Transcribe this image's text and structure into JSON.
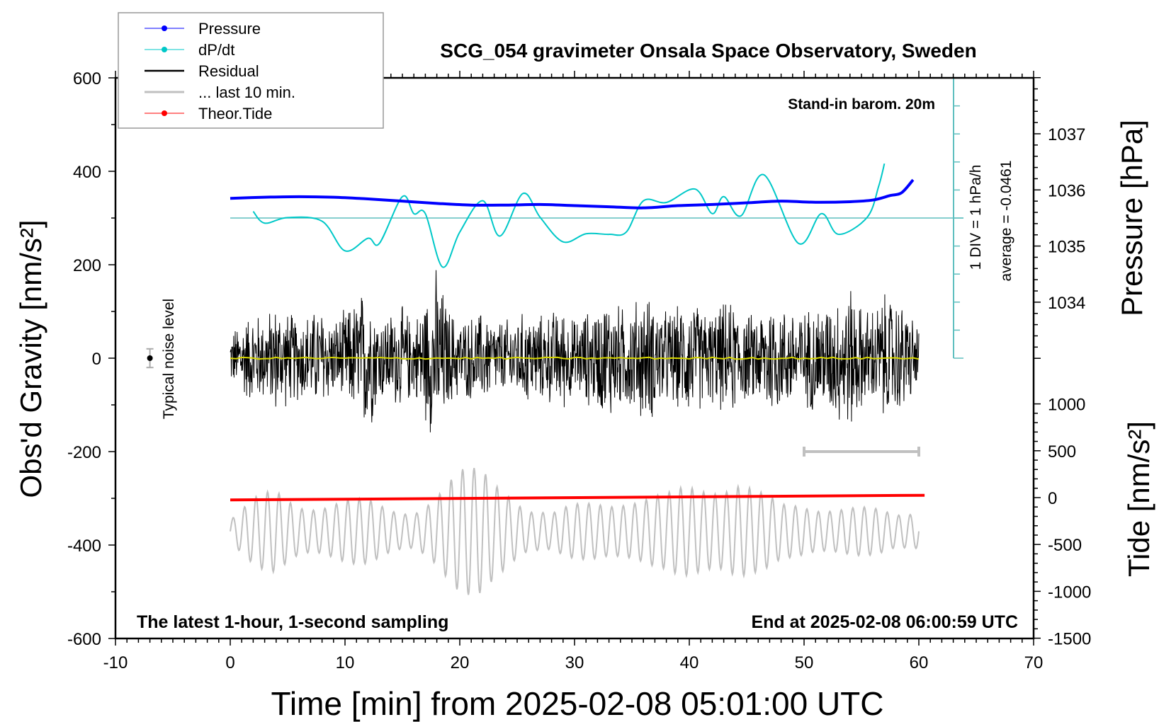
{
  "chart_data": {
    "type": "line",
    "title": "SCG_054 gravimeter Onsala Space Observatory, Sweden",
    "xlabel": "Time [min] from 2025-02-08 05:01:00 UTC",
    "ylabel_left": "Obs'd Gravity [nm/s²]",
    "ylabel_right_top": "Pressure [hPa]",
    "ylabel_right_bottom": "Tide [nm/s²]",
    "xlim": [
      -10,
      70
    ],
    "ylim_left": [
      -600,
      600
    ],
    "ylim_pressure": [
      1033,
      1038
    ],
    "ylim_tide": [
      -1500,
      1500
    ],
    "xticks": [
      "-10",
      "0",
      "10",
      "20",
      "30",
      "40",
      "50",
      "60",
      "70"
    ],
    "yticks_left": [
      "600",
      "400",
      "200",
      "0",
      "-200",
      "-400",
      "-600"
    ],
    "yticks_pressure": [
      "1037",
      "1036",
      "1035",
      "1034"
    ],
    "yticks_tide": [
      "1000",
      "500",
      "0",
      "-500",
      "-1000",
      "-1500"
    ],
    "annotations": {
      "barometer": "Stand-in barom. 20m",
      "noise": "Typical noise level",
      "div": "1 DIV = 1 hPa/h",
      "average": "average = -0.0461",
      "latest": "The latest 1-hour, 1-second sampling",
      "end": "End at 2025-02-08 06:00:59 UTC"
    },
    "legend": {
      "placement": "top-left",
      "entries": [
        "Pressure",
        "dP/dt",
        "Residual",
        "... last 10 min.",
        "Theor.Tide"
      ]
    },
    "colors": {
      "pressure": "#0000ff",
      "dpdt": "#00c8c8",
      "dpdt_axis": "#5fbfbf",
      "residual": "#000000",
      "residual_mean": "#d8d800",
      "last10": "#c0c0c0",
      "tide": "#ff0000"
    },
    "dpdt_average": -0.0461,
    "series": [
      {
        "name": "Pressure",
        "axis": "pressure",
        "x": [
          0,
          3,
          6,
          9,
          12,
          15,
          18,
          21,
          24,
          27,
          30,
          33,
          36,
          39,
          42,
          45,
          48,
          51,
          54,
          56,
          57.5,
          58.5,
          59.5
        ],
        "y": [
          1035.85,
          1035.87,
          1035.88,
          1035.87,
          1035.84,
          1035.8,
          1035.76,
          1035.73,
          1035.73,
          1035.74,
          1035.72,
          1035.7,
          1035.68,
          1035.72,
          1035.74,
          1035.77,
          1035.8,
          1035.78,
          1035.79,
          1035.82,
          1035.9,
          1035.95,
          1036.18
        ]
      },
      {
        "name": "dP/dt",
        "axis": "dpdt",
        "x": [
          2,
          3,
          5,
          8,
          10,
          12,
          13,
          15,
          16,
          17,
          18.5,
          20,
          22,
          23.5,
          25.5,
          27,
          29,
          31,
          33,
          34.5,
          36,
          38,
          40.5,
          42,
          43,
          44.5,
          46.5,
          49.5,
          51.5,
          53,
          55.5,
          56.5,
          57
        ],
        "y": [
          0.19,
          -0.23,
          -0.03,
          -0.16,
          -1.22,
          -0.77,
          -0.95,
          0.72,
          0.11,
          0.11,
          -1.8,
          -0.55,
          0.57,
          -0.69,
          0.83,
          -0.02,
          -0.9,
          -0.61,
          -0.63,
          -0.55,
          0.57,
          0.51,
          0.99,
          0.11,
          0.72,
          0.03,
          1.5,
          -0.95,
          0.11,
          -0.63,
          -0.02,
          1.09,
          1.9
        ]
      },
      {
        "name": "Residual",
        "axis": "gravity",
        "x_step_min": 1,
        "x_start": 0,
        "envelope": [
          60,
          90,
          110,
          100,
          130,
          110,
          100,
          110,
          120,
          90,
          110,
          140,
          180,
          100,
          110,
          120,
          90,
          150,
          210,
          120,
          90,
          100,
          110,
          90,
          90,
          100,
          110,
          100,
          110,
          120,
          90,
          110,
          120,
          150,
          120,
          130,
          150,
          140,
          110,
          120,
          140,
          120,
          110,
          130,
          130,
          100,
          110,
          150,
          120,
          120,
          110,
          130,
          130,
          150,
          175,
          120,
          120,
          150,
          140,
          120,
          70
        ]
      },
      {
        "name": "... last 10 min.",
        "axis": "tide",
        "x_step_min": 2,
        "x_start": 0,
        "center": -360,
        "period_min": 1.0,
        "envelope": [
          150,
          350,
          500,
          400,
          350,
          350,
          350,
          300,
          300,
          450,
          650,
          750,
          650,
          300,
          200,
          300,
          400,
          450,
          400,
          400,
          550,
          650,
          700,
          450,
          300,
          350,
          350,
          300,
          250,
          200,
          300
        ]
      },
      {
        "name": "Theor.Tide",
        "axis": "tide",
        "x": [
          0,
          60.5
        ],
        "y": [
          -25,
          25
        ]
      }
    ],
    "noise_level": {
      "x": -7,
      "value": 0,
      "error": 20
    },
    "scale_bar": {
      "x": [
        50,
        60
      ],
      "y": -200
    }
  }
}
